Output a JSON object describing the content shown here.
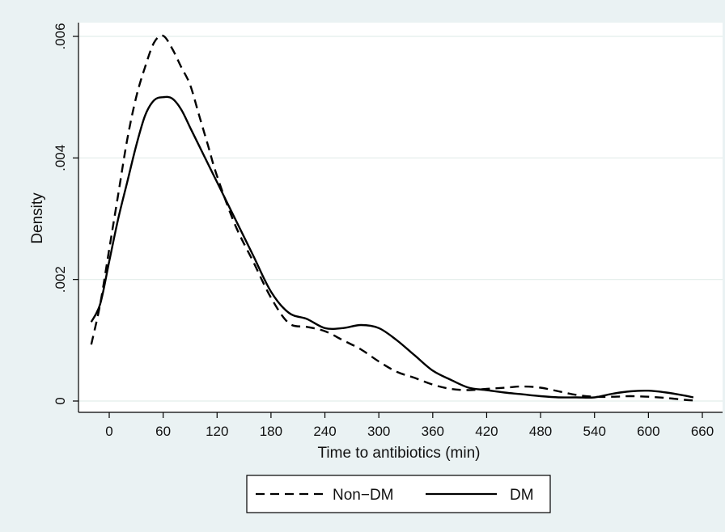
{
  "chart_data": {
    "type": "line",
    "title": "",
    "xlabel": "Time to antibiotics (min)",
    "ylabel": "Density",
    "xlim": [
      -20,
      660
    ],
    "ylim": [
      0,
      0.006
    ],
    "x_ticks": [
      {
        "value": 0,
        "label": "0"
      },
      {
        "value": 60,
        "label": "60"
      },
      {
        "value": 120,
        "label": "120"
      },
      {
        "value": 180,
        "label": "180"
      },
      {
        "value": 240,
        "label": "240"
      },
      {
        "value": 300,
        "label": "300"
      },
      {
        "value": 360,
        "label": "360"
      },
      {
        "value": 420,
        "label": "420"
      },
      {
        "value": 480,
        "label": "480"
      },
      {
        "value": 540,
        "label": "540"
      },
      {
        "value": 600,
        "label": "600"
      },
      {
        "value": 660,
        "label": "660"
      }
    ],
    "y_ticks": [
      {
        "value": 0,
        "label": "0"
      },
      {
        "value": 0.002,
        "label": ".002"
      },
      {
        "value": 0.004,
        "label": ".004"
      },
      {
        "value": 0.006,
        "label": ".006"
      }
    ],
    "grid": true,
    "legend_position": "bottom",
    "colors": {
      "background": "#eaf2f3",
      "plot": "#ffffff",
      "grid": "#e2ede9",
      "line": "#000000"
    },
    "series": [
      {
        "name": "Non−DM",
        "style": "dashed",
        "x": [
          -20,
          -10,
          0,
          10,
          20,
          30,
          40,
          50,
          60,
          70,
          80,
          90,
          100,
          110,
          120,
          140,
          160,
          180,
          200,
          220,
          240,
          260,
          280,
          300,
          320,
          340,
          360,
          380,
          400,
          420,
          440,
          460,
          480,
          500,
          520,
          540,
          560,
          580,
          600,
          620,
          640,
          650
        ],
        "y": [
          0.00093,
          0.0016,
          0.0025,
          0.0034,
          0.0043,
          0.005,
          0.0055,
          0.0059,
          0.00601,
          0.0058,
          0.0055,
          0.0052,
          0.0047,
          0.0042,
          0.0037,
          0.0029,
          0.0023,
          0.0017,
          0.00128,
          0.00122,
          0.00115,
          0.001,
          0.00085,
          0.00065,
          0.00048,
          0.00038,
          0.00027,
          0.0002,
          0.00018,
          0.0002,
          0.00022,
          0.00024,
          0.00022,
          0.00016,
          0.0001,
          7e-05,
          7e-05,
          8e-05,
          7e-05,
          5e-05,
          2e-05,
          1e-05
        ]
      },
      {
        "name": "DM",
        "style": "solid",
        "x": [
          -20,
          -10,
          0,
          10,
          20,
          30,
          40,
          50,
          60,
          70,
          80,
          90,
          100,
          110,
          120,
          140,
          160,
          180,
          200,
          220,
          240,
          260,
          280,
          300,
          320,
          340,
          360,
          380,
          400,
          420,
          440,
          460,
          480,
          500,
          520,
          540,
          560,
          580,
          600,
          620,
          640,
          650
        ],
        "y": [
          0.0013,
          0.0016,
          0.0023,
          0.003,
          0.0036,
          0.0042,
          0.0047,
          0.00495,
          0.005,
          0.00498,
          0.0048,
          0.0045,
          0.0042,
          0.0039,
          0.0036,
          0.003,
          0.0024,
          0.0018,
          0.00145,
          0.00135,
          0.0012,
          0.0012,
          0.00125,
          0.0012,
          0.001,
          0.00075,
          0.0005,
          0.00035,
          0.00022,
          0.00018,
          0.00014,
          0.00011,
          8e-05,
          6e-05,
          6e-05,
          6e-05,
          0.00012,
          0.00016,
          0.00017,
          0.00014,
          9e-05,
          6e-05
        ]
      }
    ]
  }
}
